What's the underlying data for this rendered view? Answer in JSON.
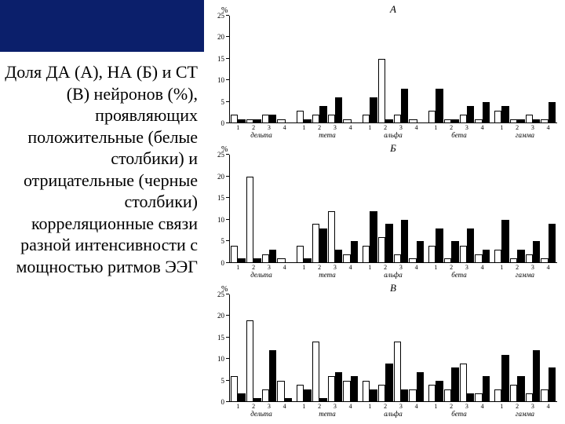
{
  "slide": {
    "nav_bg": "#0b1f6b",
    "caption": "Доля ДА (А), НА (Б) и СТ (В) нейронов (%), проявляющих положительные (белые столбики) и отрицательные (черные столбики) корреляционные связи разной интенсивности с мощностью ритмов ЭЭГ",
    "caption_fontsize": 22
  },
  "chart": {
    "panel_titles": [
      "А",
      "Б",
      "В"
    ],
    "pct_symbol": "%",
    "group_labels": [
      "дельта",
      "тета",
      "альфа",
      "бета",
      "гамма"
    ],
    "x_numbers": [
      1,
      2,
      3,
      4
    ],
    "bar_colors": {
      "positive": "#ffffff",
      "negative": "#000000",
      "border": "#000000"
    },
    "axis_color": "#000000",
    "tick_fontsize": 9,
    "xnum_fontsize": 8,
    "group_label_fontsize": 9,
    "panel_title_fontsize": 13,
    "panels": [
      {
        "id": "A",
        "ylim": [
          0,
          25
        ],
        "ytick_step": 5,
        "groups": [
          {
            "white": [
              2,
              1,
              2,
              1
            ],
            "black": [
              1,
              1,
              2,
              0
            ]
          },
          {
            "white": [
              3,
              2,
              2,
              1
            ],
            "black": [
              1,
              4,
              6,
              0
            ]
          },
          {
            "white": [
              2,
              15,
              2,
              1
            ],
            "black": [
              6,
              1,
              8,
              0
            ]
          },
          {
            "white": [
              3,
              1,
              2,
              1
            ],
            "black": [
              8,
              1,
              4,
              5
            ]
          },
          {
            "white": [
              3,
              1,
              2,
              1
            ],
            "black": [
              4,
              1,
              1,
              5
            ]
          }
        ]
      },
      {
        "id": "B",
        "ylim": [
          0,
          25
        ],
        "ytick_step": 5,
        "groups": [
          {
            "white": [
              4,
              20,
              2,
              1
            ],
            "black": [
              1,
              1,
              3,
              0
            ]
          },
          {
            "white": [
              4,
              9,
              12,
              2
            ],
            "black": [
              1,
              8,
              3,
              5
            ]
          },
          {
            "white": [
              4,
              6,
              2,
              1
            ],
            "black": [
              12,
              9,
              10,
              5
            ]
          },
          {
            "white": [
              4,
              1,
              4,
              2
            ],
            "black": [
              8,
              5,
              8,
              3
            ]
          },
          {
            "white": [
              3,
              1,
              2,
              1
            ],
            "black": [
              10,
              3,
              5,
              9
            ]
          }
        ]
      },
      {
        "id": "V",
        "ylim": [
          0,
          25
        ],
        "ytick_step": 5,
        "groups": [
          {
            "white": [
              6,
              19,
              3,
              5
            ],
            "black": [
              2,
              1,
              12,
              1
            ]
          },
          {
            "white": [
              4,
              14,
              6,
              5
            ],
            "black": [
              3,
              1,
              7,
              6
            ]
          },
          {
            "white": [
              5,
              4,
              14,
              3
            ],
            "black": [
              3,
              9,
              3,
              7
            ]
          },
          {
            "white": [
              4,
              3,
              9,
              2
            ],
            "black": [
              5,
              8,
              2,
              6
            ]
          },
          {
            "white": [
              3,
              4,
              2,
              3
            ],
            "black": [
              11,
              6,
              12,
              8
            ]
          }
        ]
      }
    ]
  }
}
